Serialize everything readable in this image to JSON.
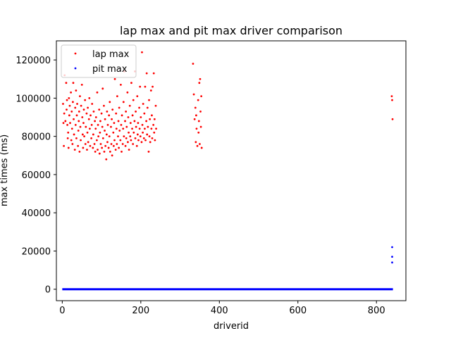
{
  "chart_data": {
    "type": "scatter",
    "title": "lap max and pit max driver comparison",
    "xlabel": "driverid",
    "ylabel": "max times (ms)",
    "xlim": [
      -15,
      875
    ],
    "ylim": [
      -6000,
      130000
    ],
    "xticks": [
      0,
      200,
      400,
      600,
      800
    ],
    "yticks": [
      0,
      20000,
      40000,
      60000,
      80000,
      100000,
      120000
    ],
    "tick_labels_x": [
      "0",
      "200",
      "400",
      "600",
      "800"
    ],
    "tick_labels_y": [
      "0",
      "20000",
      "40000",
      "60000",
      "80000",
      "100000",
      "120000"
    ],
    "grid": false,
    "legend_position": "top-left",
    "series": [
      {
        "name": "lap max",
        "color": "#ff0000",
        "points": [
          [
            2,
            97000
          ],
          [
            3,
            87000
          ],
          [
            4,
            75000
          ],
          [
            5,
            92000
          ],
          [
            6,
            112000
          ],
          [
            8,
            88000
          ],
          [
            10,
            108000
          ],
          [
            11,
            94000
          ],
          [
            12,
            99000
          ],
          [
            13,
            86000
          ],
          [
            14,
            79000
          ],
          [
            15,
            82000
          ],
          [
            16,
            74000
          ],
          [
            17,
            100000
          ],
          [
            18,
            91000
          ],
          [
            19,
            96000
          ],
          [
            20,
            87000
          ],
          [
            22,
            103000
          ],
          [
            23,
            78000
          ],
          [
            24,
            93000
          ],
          [
            25,
            84000
          ],
          [
            26,
            76000
          ],
          [
            27,
            98000
          ],
          [
            28,
            108000
          ],
          [
            29,
            89000
          ],
          [
            30,
            81000
          ],
          [
            32,
            73000
          ],
          [
            33,
            95000
          ],
          [
            34,
            86000
          ],
          [
            35,
            104000
          ],
          [
            36,
            79000
          ],
          [
            37,
            91000
          ],
          [
            38,
            97000
          ],
          [
            40,
            75000
          ],
          [
            41,
            83000
          ],
          [
            42,
            88000
          ],
          [
            43,
            93000
          ],
          [
            44,
            72000
          ],
          [
            45,
            101000
          ],
          [
            46,
            85000
          ],
          [
            47,
            78000
          ],
          [
            48,
            96000
          ],
          [
            50,
            107000
          ],
          [
            51,
            90000
          ],
          [
            52,
            81000
          ],
          [
            53,
            74000
          ],
          [
            54,
            87000
          ],
          [
            55,
            94000
          ],
          [
            56,
            80000
          ],
          [
            58,
            99000
          ],
          [
            59,
            76000
          ],
          [
            60,
            85000
          ],
          [
            62,
            92000
          ],
          [
            63,
            73000
          ],
          [
            64,
            82000
          ],
          [
            65,
            95000
          ],
          [
            66,
            77000
          ],
          [
            68,
            89000
          ],
          [
            69,
            100000
          ],
          [
            70,
            84000
          ],
          [
            71,
            75000
          ],
          [
            72,
            91000
          ],
          [
            74,
            79000
          ],
          [
            75,
            86000
          ],
          [
            76,
            97000
          ],
          [
            78,
            74000
          ],
          [
            79,
            81000
          ],
          [
            80,
            93000
          ],
          [
            82,
            76000
          ],
          [
            83,
            88000
          ],
          [
            84,
            72000
          ],
          [
            85,
            84000
          ],
          [
            86,
            90000
          ],
          [
            88,
            78000
          ],
          [
            89,
            103000
          ],
          [
            90,
            73000
          ],
          [
            91,
            86000
          ],
          [
            92,
            80000
          ],
          [
            94,
            94000
          ],
          [
            95,
            71000
          ],
          [
            96,
            82000
          ],
          [
            97,
            88000
          ],
          [
            98,
            76000
          ],
          [
            100,
            92000
          ],
          [
            101,
            74000
          ],
          [
            102,
            85000
          ],
          [
            103,
            105000
          ],
          [
            104,
            79000
          ],
          [
            106,
            96000
          ],
          [
            107,
            72000
          ],
          [
            108,
            83000
          ],
          [
            109,
            89000
          ],
          [
            110,
            75000
          ],
          [
            112,
            68000
          ],
          [
            113,
            81000
          ],
          [
            114,
            93000
          ],
          [
            115,
            77000
          ],
          [
            116,
            86000
          ],
          [
            118,
            74000
          ],
          [
            119,
            91000
          ],
          [
            120,
            80000
          ],
          [
            121,
            98000
          ],
          [
            122,
            72000
          ],
          [
            124,
            85000
          ],
          [
            125,
            76000
          ],
          [
            126,
            89000
          ],
          [
            127,
            70000
          ],
          [
            128,
            94000
          ],
          [
            130,
            82000
          ],
          [
            131,
            75000
          ],
          [
            132,
            87000
          ],
          [
            133,
            78000
          ],
          [
            134,
            110000
          ],
          [
            136,
            73000
          ],
          [
            137,
            92000
          ],
          [
            138,
            84000
          ],
          [
            139,
            76000
          ],
          [
            140,
            101000
          ],
          [
            142,
            80000
          ],
          [
            143,
            88000
          ],
          [
            144,
            74000
          ],
          [
            145,
            95000
          ],
          [
            146,
            83000
          ],
          [
            148,
            78000
          ],
          [
            149,
            107000
          ],
          [
            150,
            86000
          ],
          [
            151,
            72000
          ],
          [
            152,
            91000
          ],
          [
            154,
            76000
          ],
          [
            155,
            84000
          ],
          [
            156,
            98000
          ],
          [
            157,
            80000
          ],
          [
            158,
            114000
          ],
          [
            160,
            88000
          ],
          [
            161,
            75000
          ],
          [
            162,
            93000
          ],
          [
            163,
            79000
          ],
          [
            164,
            85000
          ],
          [
            166,
            103000
          ],
          [
            167,
            77000
          ],
          [
            168,
            90000
          ],
          [
            169,
            82000
          ],
          [
            170,
            73000
          ],
          [
            172,
            96000
          ],
          [
            173,
            80000
          ],
          [
            174,
            87000
          ],
          [
            175,
            78000
          ],
          [
            176,
            108000
          ],
          [
            178,
            84000
          ],
          [
            179,
            91000
          ],
          [
            180,
            76000
          ],
          [
            181,
            99000
          ],
          [
            182,
            82000
          ],
          [
            184,
            88000
          ],
          [
            185,
            114000
          ],
          [
            186,
            79000
          ],
          [
            187,
            93000
          ],
          [
            188,
            85000
          ],
          [
            190,
            75000
          ],
          [
            191,
            101000
          ],
          [
            192,
            81000
          ],
          [
            193,
            87000
          ],
          [
            194,
            78000
          ],
          [
            196,
            95000
          ],
          [
            197,
            84000
          ],
          [
            198,
            106000
          ],
          [
            199,
            80000
          ],
          [
            200,
            90000
          ],
          [
            202,
            77000
          ],
          [
            203,
            124000
          ],
          [
            204,
            86000
          ],
          [
            205,
            82000
          ],
          [
            206,
            97000
          ],
          [
            208,
            79000
          ],
          [
            209,
            92000
          ],
          [
            210,
            84000
          ],
          [
            211,
            106000
          ],
          [
            212,
            78000
          ],
          [
            214,
            88000
          ],
          [
            215,
            113000
          ],
          [
            216,
            81000
          ],
          [
            217,
            95000
          ],
          [
            218,
            85000
          ],
          [
            220,
            72000
          ],
          [
            221,
            99000
          ],
          [
            222,
            80000
          ],
          [
            223,
            89000
          ],
          [
            224,
            77000
          ],
          [
            226,
            104000
          ],
          [
            227,
            84000
          ],
          [
            228,
            91000
          ],
          [
            229,
            79000
          ],
          [
            230,
            106000
          ],
          [
            232,
            86000
          ],
          [
            233,
            113000
          ],
          [
            234,
            82000
          ],
          [
            235,
            89000
          ],
          [
            236,
            78000
          ],
          [
            238,
            96000
          ],
          [
            239,
            84000
          ],
          [
            333,
            118000
          ],
          [
            335,
            102000
          ],
          [
            337,
            89000
          ],
          [
            339,
            95000
          ],
          [
            340,
            77000
          ],
          [
            341,
            91000
          ],
          [
            342,
            84000
          ],
          [
            344,
            75000
          ],
          [
            346,
            99000
          ],
          [
            347,
            82000
          ],
          [
            348,
            88000
          ],
          [
            349,
            108000
          ],
          [
            350,
            76000
          ],
          [
            351,
            110000
          ],
          [
            352,
            93000
          ],
          [
            353,
            85000
          ],
          [
            354,
            101000
          ],
          [
            355,
            74000
          ],
          [
            839,
            101000
          ],
          [
            840,
            99000
          ],
          [
            841,
            89000
          ]
        ]
      },
      {
        "name": "pit max",
        "color": "#0000ff",
        "points": [
          [
            840,
            22000
          ],
          [
            840,
            17000
          ],
          [
            840,
            14000
          ]
        ],
        "baseline": {
          "value": 0,
          "x_start": 0,
          "x_end": 842
        }
      }
    ]
  }
}
